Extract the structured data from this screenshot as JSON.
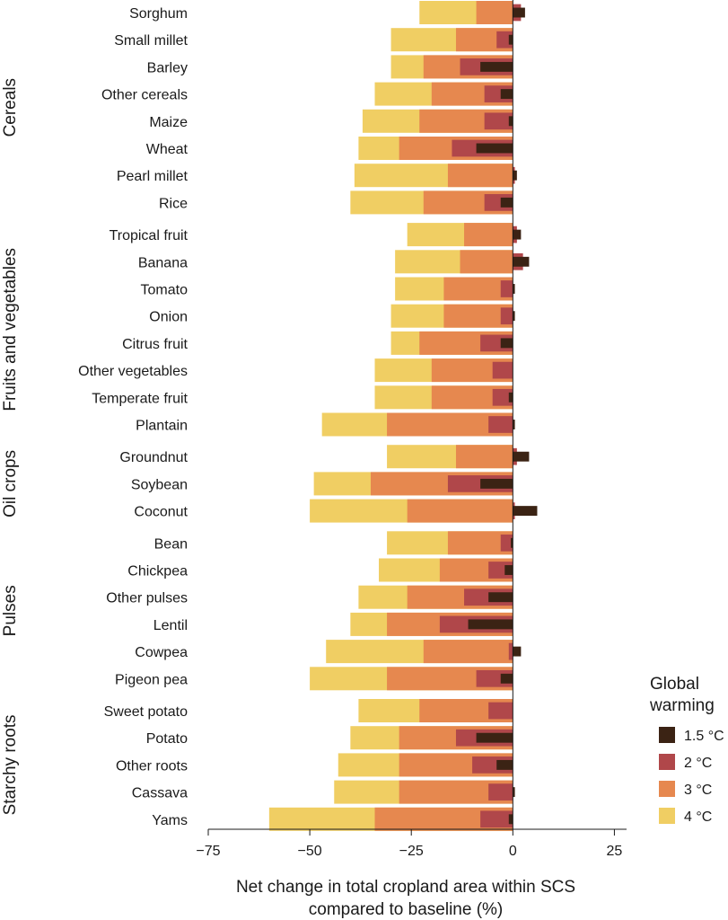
{
  "chart_data": {
    "type": "bar",
    "orientation": "horizontal",
    "xlabel_line1": "Net change in total cropland area within SCS",
    "xlabel_line2": "compared to baseline (%)",
    "xlim": [
      -75,
      28
    ],
    "xticks": [
      -75,
      -50,
      -25,
      0,
      25
    ],
    "xtick_labels": [
      "−75",
      "−50",
      "−25",
      "0",
      "25"
    ],
    "legend": {
      "title_line1": "Global",
      "title_line2": "warming",
      "position": "right"
    },
    "series": [
      {
        "name": "1.5 °C",
        "color": "#3b2314"
      },
      {
        "name": "2 °C",
        "color": "#b0474a"
      },
      {
        "name": "3 °C",
        "color": "#e6884f"
      },
      {
        "name": "4 °C",
        "color": "#f0ce63"
      }
    ],
    "groups": [
      {
        "name": "Cereals",
        "crops": [
          {
            "name": "Sorghum",
            "values": [
              3,
              2,
              -9,
              -23
            ]
          },
          {
            "name": "Small millet",
            "values": [
              -1,
              -4,
              -14,
              -30
            ]
          },
          {
            "name": "Barley",
            "values": [
              -8,
              -13,
              -22,
              -30
            ]
          },
          {
            "name": "Other cereals",
            "values": [
              -3,
              -7,
              -20,
              -34
            ]
          },
          {
            "name": "Maize",
            "values": [
              -1,
              -7,
              -23,
              -37
            ]
          },
          {
            "name": "Wheat",
            "values": [
              -9,
              -15,
              -28,
              -38
            ]
          },
          {
            "name": "Pearl millet",
            "values": [
              1,
              0.5,
              -16,
              -39
            ]
          },
          {
            "name": "Rice",
            "values": [
              -3,
              -7,
              -22,
              -40
            ]
          }
        ]
      },
      {
        "name": "Fruits and vegetables",
        "crops": [
          {
            "name": "Tropical fruit",
            "values": [
              2,
              1,
              -12,
              -26
            ]
          },
          {
            "name": "Banana",
            "values": [
              4,
              2.5,
              -13,
              -29
            ]
          },
          {
            "name": "Tomato",
            "values": [
              0.5,
              -3,
              -17,
              -29
            ]
          },
          {
            "name": "Onion",
            "values": [
              0.5,
              -3,
              -17,
              -30
            ]
          },
          {
            "name": "Citrus fruit",
            "values": [
              -3,
              -8,
              -23,
              -30
            ]
          },
          {
            "name": "Other vegetables",
            "values": [
              0,
              -5,
              -20,
              -34
            ]
          },
          {
            "name": "Temperate fruit",
            "values": [
              -1,
              -5,
              -20,
              -34
            ]
          },
          {
            "name": "Plantain",
            "values": [
              0.5,
              -6,
              -31,
              -47
            ]
          }
        ]
      },
      {
        "name": "Oil crops",
        "crops": [
          {
            "name": "Groundnut",
            "values": [
              4,
              1,
              -14,
              -31
            ]
          },
          {
            "name": "Soybean",
            "values": [
              -8,
              -16,
              -35,
              -49
            ]
          },
          {
            "name": "Coconut",
            "values": [
              6,
              0.5,
              -26,
              -50
            ]
          }
        ]
      },
      {
        "name": "Pulses",
        "crops": [
          {
            "name": "Bean",
            "values": [
              -0.5,
              -3,
              -16,
              -31
            ]
          },
          {
            "name": "Chickpea",
            "values": [
              -2,
              -6,
              -18,
              -33
            ]
          },
          {
            "name": "Other pulses",
            "values": [
              -6,
              -12,
              -26,
              -38
            ]
          },
          {
            "name": "Lentil",
            "values": [
              -11,
              -18,
              -31,
              -40
            ]
          },
          {
            "name": "Cowpea",
            "values": [
              2,
              -1,
              -22,
              -46
            ]
          },
          {
            "name": "Pigeon pea",
            "values": [
              -3,
              -9,
              -31,
              -50
            ]
          }
        ]
      },
      {
        "name": "Starchy roots",
        "crops": [
          {
            "name": "Sweet potato",
            "values": [
              0,
              -6,
              -23,
              -38
            ]
          },
          {
            "name": "Potato",
            "values": [
              -9,
              -14,
              -28,
              -40
            ]
          },
          {
            "name": "Other roots",
            "values": [
              -4,
              -10,
              -28,
              -43
            ]
          },
          {
            "name": "Cassava",
            "values": [
              0.5,
              -6,
              -28,
              -44
            ]
          },
          {
            "name": "Yams",
            "values": [
              -1,
              -8,
              -34,
              -60
            ]
          }
        ]
      }
    ]
  }
}
